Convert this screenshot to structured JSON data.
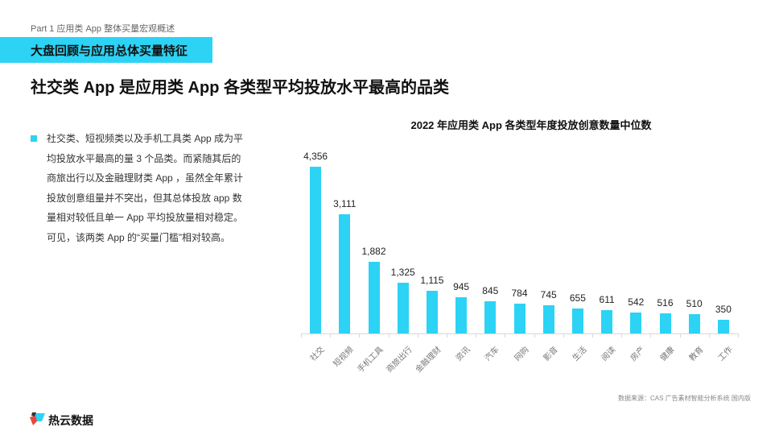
{
  "header": {
    "part_label": "Part 1 应用类 App 整体买量宏观概述",
    "section_banner": "大盘回顾与应用总体买量特征",
    "page_title": "社交类 App 是应用类 App 各类型平均投放水平最高的品类"
  },
  "body": {
    "paragraph": "社交类、短视频类以及手机工具类 App 成为平均投放水平最高的量 3 个品类。而紧随其后的商旅出行以及金融理财类 App ，虽然全年累计投放创意组量并不突出，但其总体投放 app 数量相对较低且单一 App 平均投放量相对稳定。可见，该两类 App 的“买量门槛”相对较高。"
  },
  "chart_data": {
    "type": "bar",
    "title": "2022 年应用类 App 各类型年度投放创意数量中位数",
    "xlabel": "",
    "ylabel": "",
    "categories": [
      "社交",
      "短视频",
      "手机工具",
      "商旅出行",
      "金融理财",
      "资讯",
      "汽车",
      "网购",
      "影音",
      "生活",
      "阅读",
      "房产",
      "健康",
      "教育",
      "工作"
    ],
    "values": [
      4356,
      3111,
      1882,
      1325,
      1115,
      945,
      845,
      784,
      745,
      655,
      611,
      542,
      516,
      510,
      350
    ],
    "value_labels": [
      "4,356",
      "3,111",
      "1,882",
      "1,325",
      "1,115",
      "945",
      "845",
      "784",
      "745",
      "655",
      "611",
      "542",
      "516",
      "510",
      "350"
    ],
    "grid": false,
    "legend": null,
    "bar_color": "#2cd3f5"
  },
  "footer": {
    "source": "数据来源：CAS 广告素材智能分析系统 国内版",
    "brand": "热云数据"
  },
  "colors": {
    "accent": "#2cd3f5",
    "logo_red": "#e8473c",
    "logo_dark": "#333333"
  }
}
